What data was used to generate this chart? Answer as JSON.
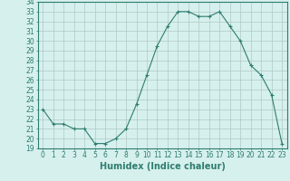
{
  "x": [
    0,
    1,
    2,
    3,
    4,
    5,
    6,
    7,
    8,
    9,
    10,
    11,
    12,
    13,
    14,
    15,
    16,
    17,
    18,
    19,
    20,
    21,
    22,
    23
  ],
  "y": [
    23.0,
    21.5,
    21.5,
    21.0,
    21.0,
    19.5,
    19.5,
    20.0,
    21.0,
    23.5,
    26.5,
    29.5,
    31.5,
    33.0,
    33.0,
    32.5,
    32.5,
    33.0,
    31.5,
    30.0,
    27.5,
    26.5,
    24.5,
    19.5
  ],
  "xlabel": "Humidex (Indice chaleur)",
  "ylim": [
    19,
    34
  ],
  "xlim": [
    -0.5,
    23.5
  ],
  "yticks": [
    19,
    20,
    21,
    22,
    23,
    24,
    25,
    26,
    27,
    28,
    29,
    30,
    31,
    32,
    33,
    34
  ],
  "xticks": [
    0,
    1,
    2,
    3,
    4,
    5,
    6,
    7,
    8,
    9,
    10,
    11,
    12,
    13,
    14,
    15,
    16,
    17,
    18,
    19,
    20,
    21,
    22,
    23
  ],
  "line_color": "#2e7d6e",
  "marker_color": "#2e7d6e",
  "bg_color": "#d6f0ee",
  "grid_color": "#b0c8c4",
  "axis_color": "#2e7d6e",
  "tick_color": "#2e7d6e",
  "label_color": "#2e7d6e",
  "xlabel_fontsize": 7,
  "tick_fontsize": 5.5
}
